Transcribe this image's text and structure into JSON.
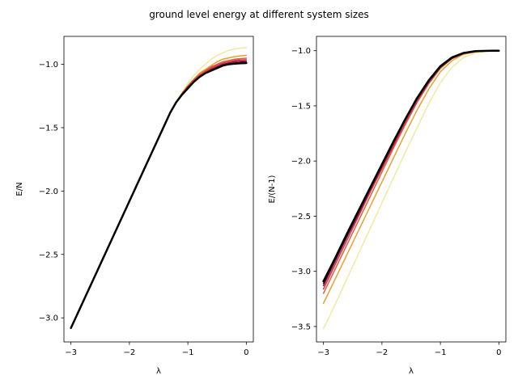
{
  "figure": {
    "title": "ground level energy at different system sizes"
  },
  "chart_data": [
    {
      "type": "line",
      "title": "",
      "xlabel": "λ",
      "ylabel": "E/N",
      "xlim": [
        -3.12,
        0.12
      ],
      "ylim": [
        -3.19,
        -0.78
      ],
      "xticks": [
        -3,
        -2,
        -1,
        0
      ],
      "xtick_labels": [
        "−3",
        "−2",
        "−1",
        "0"
      ],
      "yticks": [
        -3.0,
        -2.5,
        -2.0,
        -1.5,
        -1.0
      ],
      "ytick_labels": [
        "−3.0",
        "−2.5",
        "−2.0",
        "−1.5",
        "−1.0"
      ],
      "grid": false,
      "x": [
        -3.0,
        -2.8,
        -2.6,
        -2.4,
        -2.2,
        -2.0,
        -1.8,
        -1.6,
        -1.4,
        -1.3,
        -1.2,
        -1.1,
        -1.0,
        -0.9,
        -0.8,
        -0.7,
        -0.6,
        -0.5,
        -0.4,
        -0.3,
        -0.2,
        -0.1,
        0.0
      ],
      "series": [
        {
          "color": "#f2e8a0",
          "width": 1.5,
          "values": [
            -3.08,
            -2.88,
            -2.68,
            -2.48,
            -2.28,
            -2.08,
            -1.88,
            -1.68,
            -1.48,
            -1.38,
            -1.3,
            -1.22,
            -1.15,
            -1.09,
            -1.04,
            -1.0,
            -0.96,
            -0.93,
            -0.91,
            -0.89,
            -0.88,
            -0.872,
            -0.87
          ]
        },
        {
          "color": "#e8a030",
          "width": 1.5,
          "values": [
            -3.08,
            -2.88,
            -2.68,
            -2.48,
            -2.28,
            -2.08,
            -1.88,
            -1.68,
            -1.48,
            -1.38,
            -1.3,
            -1.23,
            -1.17,
            -1.12,
            -1.07,
            -1.04,
            -1.01,
            -0.98,
            -0.96,
            -0.95,
            -0.94,
            -0.934,
            -0.93
          ]
        },
        {
          "color": "#e06030",
          "width": 1.5,
          "values": [
            -3.08,
            -2.88,
            -2.68,
            -2.48,
            -2.28,
            -2.08,
            -1.88,
            -1.68,
            -1.48,
            -1.38,
            -1.3,
            -1.23,
            -1.17,
            -1.12,
            -1.08,
            -1.05,
            -1.02,
            -1.0,
            -0.98,
            -0.97,
            -0.96,
            -0.955,
            -0.952
          ]
        },
        {
          "color": "#d03060",
          "width": 1.5,
          "values": [
            -3.08,
            -2.88,
            -2.68,
            -2.48,
            -2.28,
            -2.08,
            -1.88,
            -1.68,
            -1.48,
            -1.38,
            -1.3,
            -1.24,
            -1.18,
            -1.13,
            -1.09,
            -1.06,
            -1.03,
            -1.01,
            -0.99,
            -0.98,
            -0.97,
            -0.966,
            -0.964
          ]
        },
        {
          "color": "#901030",
          "width": 1.5,
          "values": [
            -3.08,
            -2.88,
            -2.68,
            -2.48,
            -2.28,
            -2.08,
            -1.88,
            -1.68,
            -1.48,
            -1.38,
            -1.3,
            -1.24,
            -1.18,
            -1.14,
            -1.1,
            -1.07,
            -1.04,
            -1.02,
            -1.0,
            -0.99,
            -0.98,
            -0.976,
            -0.975
          ]
        },
        {
          "color": "#400818",
          "width": 1.5,
          "values": [
            -3.08,
            -2.88,
            -2.68,
            -2.48,
            -2.28,
            -2.08,
            -1.88,
            -1.68,
            -1.48,
            -1.38,
            -1.3,
            -1.24,
            -1.19,
            -1.14,
            -1.1,
            -1.07,
            -1.05,
            -1.03,
            -1.01,
            -1.0,
            -0.99,
            -0.986,
            -0.985
          ]
        },
        {
          "color": "#000000",
          "width": 2.5,
          "values": [
            -3.08,
            -2.88,
            -2.68,
            -2.48,
            -2.28,
            -2.08,
            -1.88,
            -1.68,
            -1.48,
            -1.38,
            -1.3,
            -1.24,
            -1.19,
            -1.14,
            -1.1,
            -1.07,
            -1.05,
            -1.03,
            -1.01,
            -1.0,
            -0.995,
            -0.992,
            -0.99
          ]
        }
      ]
    },
    {
      "type": "line",
      "title": "",
      "xlabel": "λ",
      "ylabel": "E/(N-1)",
      "xlim": [
        -3.12,
        0.12
      ],
      "ylim": [
        -3.64,
        -0.87
      ],
      "xticks": [
        -3,
        -2,
        -1,
        0
      ],
      "xtick_labels": [
        "−3",
        "−2",
        "−1",
        "0"
      ],
      "yticks": [
        -3.5,
        -3.0,
        -2.5,
        -2.0,
        -1.5,
        -1.0
      ],
      "ytick_labels": [
        "−3.5",
        "−3.0",
        "−2.5",
        "−2.0",
        "−1.5",
        "−1.0"
      ],
      "grid": false,
      "x": [
        -3.0,
        -2.8,
        -2.6,
        -2.4,
        -2.2,
        -2.0,
        -1.8,
        -1.6,
        -1.4,
        -1.2,
        -1.0,
        -0.8,
        -0.6,
        -0.4,
        -0.2,
        -0.1,
        0.0
      ],
      "series": [
        {
          "color": "#f2e8a0",
          "width": 1.5,
          "values": [
            -3.52,
            -3.3,
            -3.07,
            -2.84,
            -2.61,
            -2.38,
            -2.15,
            -1.92,
            -1.7,
            -1.48,
            -1.29,
            -1.15,
            -1.06,
            -1.02,
            -1.005,
            -1.001,
            -1.0
          ]
        },
        {
          "color": "#e8a030",
          "width": 1.5,
          "values": [
            -3.29,
            -3.07,
            -2.85,
            -2.63,
            -2.41,
            -2.19,
            -1.97,
            -1.75,
            -1.54,
            -1.35,
            -1.19,
            -1.09,
            -1.03,
            -1.01,
            -1.002,
            -1.001,
            -1.0
          ]
        },
        {
          "color": "#e06030",
          "width": 1.5,
          "values": [
            -3.2,
            -2.98,
            -2.76,
            -2.54,
            -2.32,
            -2.1,
            -1.88,
            -1.67,
            -1.47,
            -1.3,
            -1.16,
            -1.07,
            -1.03,
            -1.01,
            -1.002,
            -1.001,
            -1.0
          ]
        },
        {
          "color": "#d03060",
          "width": 1.5,
          "values": [
            -3.16,
            -2.94,
            -2.72,
            -2.5,
            -2.28,
            -2.07,
            -1.86,
            -1.65,
            -1.46,
            -1.29,
            -1.15,
            -1.07,
            -1.02,
            -1.005,
            -1.001,
            -1.0,
            -1.0
          ]
        },
        {
          "color": "#901030",
          "width": 1.5,
          "values": [
            -3.13,
            -2.91,
            -2.69,
            -2.48,
            -2.26,
            -2.05,
            -1.84,
            -1.63,
            -1.44,
            -1.28,
            -1.15,
            -1.07,
            -1.02,
            -1.005,
            -1.001,
            -1.0,
            -1.0
          ]
        },
        {
          "color": "#400818",
          "width": 1.5,
          "values": [
            -3.11,
            -2.89,
            -2.68,
            -2.46,
            -2.25,
            -2.04,
            -1.83,
            -1.62,
            -1.44,
            -1.28,
            -1.15,
            -1.06,
            -1.02,
            -1.005,
            -1.001,
            -1.0,
            -1.0
          ]
        },
        {
          "color": "#000000",
          "width": 2.5,
          "values": [
            -3.09,
            -2.88,
            -2.66,
            -2.45,
            -2.24,
            -2.03,
            -1.82,
            -1.62,
            -1.43,
            -1.27,
            -1.14,
            -1.06,
            -1.02,
            -1.004,
            -1.001,
            -1.0,
            -1.0
          ]
        }
      ]
    }
  ]
}
